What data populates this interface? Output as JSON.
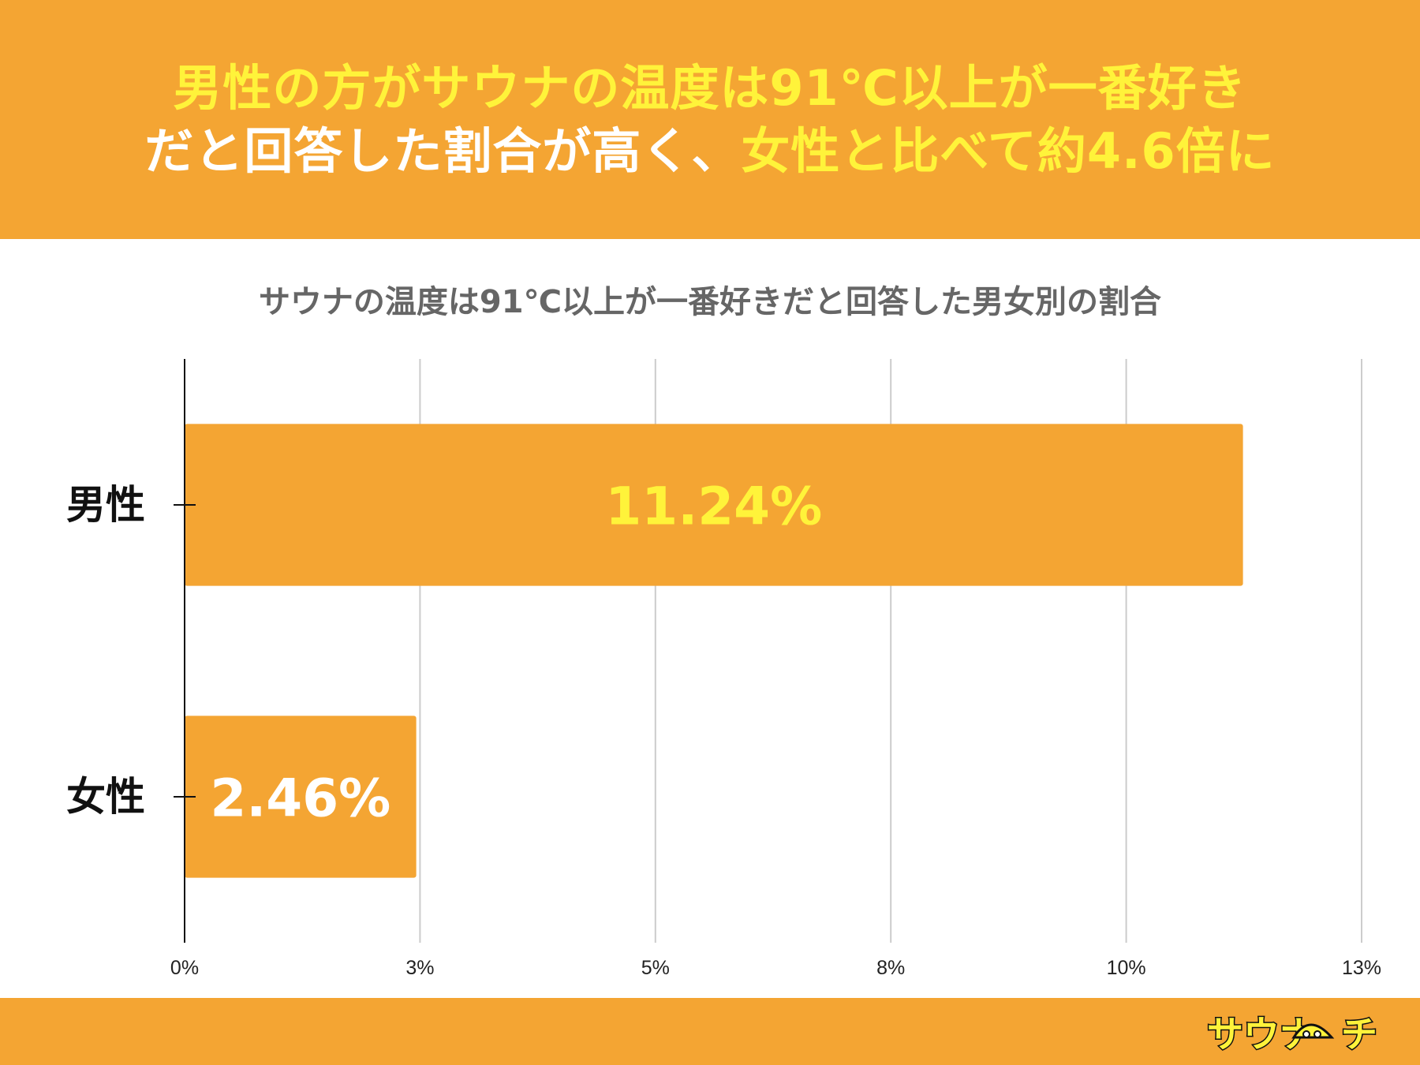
{
  "header": {
    "line1": [
      {
        "text": "男性の方がサウナの温度は91℃以上が一番好き",
        "highlight": true
      }
    ],
    "line2": [
      {
        "text": "だと回答した割合が高く、",
        "highlight": false
      },
      {
        "text": "女性と比べて約4.6倍に",
        "highlight": true
      }
    ]
  },
  "colors": {
    "accent": "#F4A533",
    "highlight_text": "#FFF33A",
    "white_text": "#FFFFFF",
    "title_gray": "#666666",
    "grid": "#CCCCCC"
  },
  "chart_data": {
    "type": "bar",
    "orientation": "horizontal",
    "title": "サウナの温度は91℃以上が一番好きだと回答した男女別の割合",
    "categories": [
      "男性",
      "女性"
    ],
    "values": [
      11.24,
      2.46
    ],
    "data_labels": [
      "11.24%",
      "2.46%"
    ],
    "data_label_colors": [
      "#FFF33A",
      "#FFFFFF"
    ],
    "xlim": [
      0,
      12.5
    ],
    "x_ticks": [
      0,
      2.5,
      5,
      7.5,
      10,
      12.5
    ],
    "x_tick_labels": [
      "0%",
      "3%",
      "5%",
      "8%",
      "10%",
      "13%"
    ],
    "xlabel": "",
    "ylabel": "",
    "grid": true,
    "legend": "none"
  },
  "footer": {
    "logo_text": "サウナ",
    "logo_text_end": "チ",
    "logo_icon": "sauna-hat-icon"
  }
}
